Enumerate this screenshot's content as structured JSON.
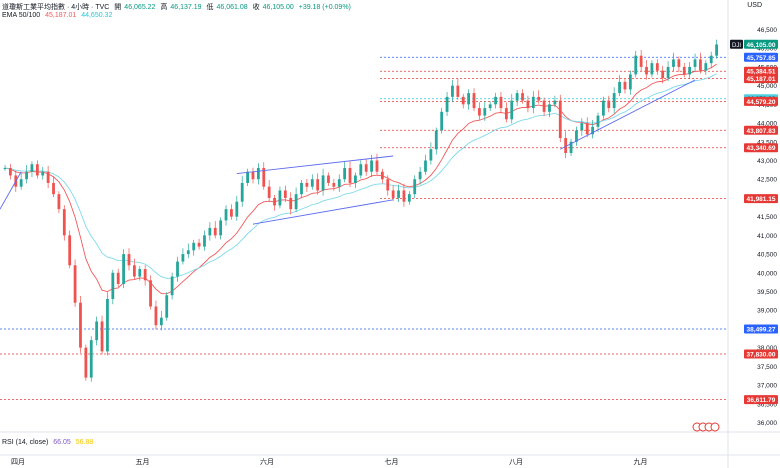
{
  "header": {
    "title": "道瓊斯工業平均指數 · 4小時 · TVC",
    "open_label": "開",
    "open": "46,065.22",
    "high_label": "高",
    "high": "46,137.19",
    "low_label": "低",
    "low": "46,061.08",
    "close_label": "收",
    "close": "46,105.00",
    "change": "+39.18 (+0.09%)",
    "ema_label": "EMA 50/100",
    "ema50": "45,187.01",
    "ema100": "44,650.32",
    "rsi_label": "RSI (14, close)",
    "rsi_value": "66.05",
    "rsi_ma": "56.88"
  },
  "currency": "USD",
  "symbol_tag": "DJI",
  "colors": {
    "up": "#26a69a",
    "down": "#ef5350",
    "ema50": "#f05a5a",
    "ema100": "#7fd8ec",
    "trend": "#5b6cf0",
    "blue_level": "#2962ff",
    "red_level": "#e53935",
    "teal_level": "#26c6da"
  },
  "chart_data": {
    "type": "candlestick",
    "title": "道瓊斯工業平均指數 · 4小時 · TVC",
    "ylim": [
      35800,
      46700
    ],
    "y_ticks": [
      36000,
      36500,
      37000,
      37500,
      38000,
      38500,
      39000,
      39500,
      40000,
      40500,
      41000,
      41500,
      42000,
      42500,
      43000,
      43500,
      44000,
      44500,
      45000,
      45500,
      46000,
      46500
    ],
    "x_labels": [
      "四月",
      "五月",
      "六月",
      "七月",
      "八月",
      "九月"
    ],
    "price_labels": [
      {
        "value": 46105.0,
        "text": "46,105.00",
        "style": "green"
      },
      {
        "value": 45757.85,
        "text": "45,757.85",
        "style": "blue"
      },
      {
        "value": 45384.51,
        "text": "45,384.51",
        "style": "red"
      },
      {
        "value": 45187.01,
        "text": "45,187.01",
        "style": "red"
      },
      {
        "value": 44650.32,
        "text": "44,650.32",
        "style": "cyan"
      },
      {
        "value": 44579.2,
        "text": "44,579.20",
        "style": "red"
      },
      {
        "value": 43807.83,
        "text": "43,807.83",
        "style": "red"
      },
      {
        "value": 43340.69,
        "text": "43,340.69",
        "style": "red"
      },
      {
        "value": 41981.15,
        "text": "41,981.15",
        "style": "red"
      },
      {
        "value": 38499.27,
        "text": "38,499.27",
        "style": "blue"
      },
      {
        "value": 37830.0,
        "text": "37,830.00",
        "style": "red"
      },
      {
        "value": 36611.79,
        "text": "36,611.79",
        "style": "red"
      }
    ],
    "close_series": [
      42800,
      42600,
      42300,
      42500,
      42700,
      42900,
      42600,
      42700,
      42400,
      42100,
      41700,
      41000,
      40200,
      39200,
      38000,
      37200,
      38200,
      38700,
      37900,
      39300,
      40000,
      39700,
      40500,
      40200,
      39900,
      40100,
      39800,
      39100,
      38600,
      38800,
      39400,
      39900,
      40300,
      40500,
      40600,
      40800,
      40700,
      41000,
      41200,
      41000,
      41400,
      41700,
      41500,
      41900,
      42400,
      42700,
      42500,
      42800,
      42300,
      42000,
      41800,
      42200,
      42000,
      41700,
      42100,
      42400,
      42300,
      42500,
      42200,
      42600,
      42400,
      42300,
      42500,
      42800,
      42400,
      42600,
      42900,
      42700,
      43000,
      42700,
      42500,
      42200,
      42000,
      42200,
      41900,
      42100,
      42500,
      42700,
      43000,
      43300,
      43800,
      44300,
      44700,
      45000,
      44700,
      44500,
      44800,
      44400,
      44200,
      44400,
      44500,
      44700,
      44400,
      44100,
      44600,
      44800,
      44600,
      44400,
      44700,
      44600,
      44300,
      44500,
      44600,
      43600,
      43200,
      43500,
      43800,
      44000,
      43700,
      43900,
      44200,
      44600,
      44400,
      44800,
      45100,
      44900,
      45300,
      45800,
      45500,
      45300,
      45600,
      45400,
      45200,
      45500,
      45700,
      45500,
      45300,
      45500,
      45700,
      45400,
      45600,
      45800,
      46100
    ]
  }
}
